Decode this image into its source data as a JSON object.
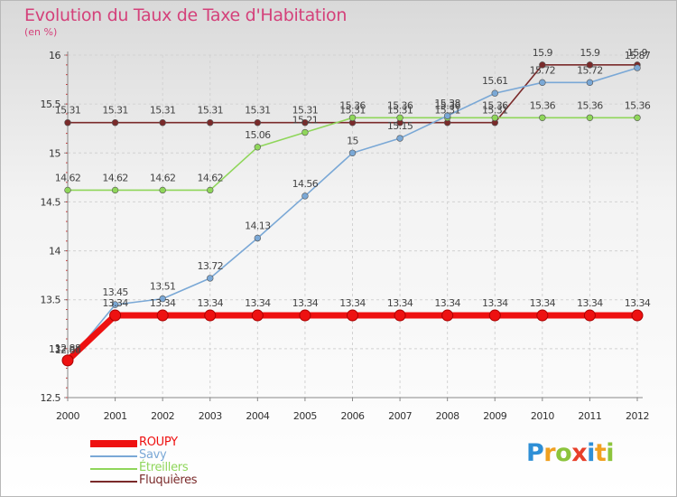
{
  "title": "Evolution du Taux de Taxe d'Habitation",
  "unit_label": "(en %)",
  "logo": {
    "letters": [
      "P",
      "r",
      "o",
      "x",
      "i",
      "t",
      "i"
    ],
    "colors": [
      "#2e8fd6",
      "#f0a020",
      "#8cc43c",
      "#e8402a",
      "#2e8fd6",
      "#f0a020",
      "#8cc43c"
    ]
  },
  "chart_data": {
    "type": "line",
    "x": [
      "2000",
      "2001",
      "2002",
      "2003",
      "2004",
      "2005",
      "2006",
      "2007",
      "2008",
      "2009",
      "2010",
      "2011",
      "2012"
    ],
    "ylim": [
      12.5,
      16
    ],
    "yticks": [
      "12.5",
      "13",
      "13.5",
      "14",
      "14.5",
      "15",
      "15.5",
      "16"
    ],
    "grid": true,
    "legend_position": "bottom-left",
    "series": [
      {
        "name": "Fluquières",
        "color": "#7a2a2a",
        "values": [
          15.31,
          15.31,
          15.31,
          15.31,
          15.31,
          15.31,
          15.31,
          15.31,
          15.31,
          15.31,
          15.9,
          15.9,
          15.9
        ],
        "labels": [
          "15.31",
          "15.31",
          "15.31",
          "15.31",
          "15.31",
          "15.31",
          "15.31",
          "15.31",
          "15.31",
          "15.31",
          "15.9",
          "15.9",
          "15.9"
        ]
      },
      {
        "name": "Étreillers",
        "color": "#8fd65a",
        "values": [
          14.62,
          14.62,
          14.62,
          14.62,
          15.06,
          15.21,
          15.36,
          15.36,
          15.36,
          15.36,
          15.36,
          15.36,
          15.36
        ],
        "labels": [
          "14.62",
          "14.62",
          "14.62",
          "14.62",
          "15.06",
          "15.21",
          "15.36",
          "15.36",
          "15.36",
          "15.36",
          "15.36",
          "15.36",
          "15.36"
        ]
      },
      {
        "name": "Savy",
        "color": "#7aa8d6",
        "values": [
          12.86,
          13.45,
          13.51,
          13.72,
          14.13,
          14.56,
          15.0,
          15.15,
          15.38,
          15.61,
          15.72,
          15.72,
          15.87
        ],
        "labels": [
          "12.86",
          "13.45",
          "13.51",
          "13.72",
          "14.13",
          "14.56",
          "15",
          "15.15",
          "15.38",
          "15.61",
          "15.72",
          "15.72",
          "15.87"
        ]
      },
      {
        "name": "ROUPY",
        "color": "#ee1111",
        "values": [
          12.88,
          13.34,
          13.34,
          13.34,
          13.34,
          13.34,
          13.34,
          13.34,
          13.34,
          13.34,
          13.34,
          13.34,
          13.34
        ],
        "labels": [
          "12.88",
          "13.34",
          "13.34",
          "13.34",
          "13.34",
          "13.34",
          "13.34",
          "13.34",
          "13.34",
          "13.34",
          "13.34",
          "13.34",
          "13.34"
        ]
      }
    ],
    "legend_order": [
      "ROUPY",
      "Savy",
      "Étreillers",
      "Fluquières"
    ]
  }
}
